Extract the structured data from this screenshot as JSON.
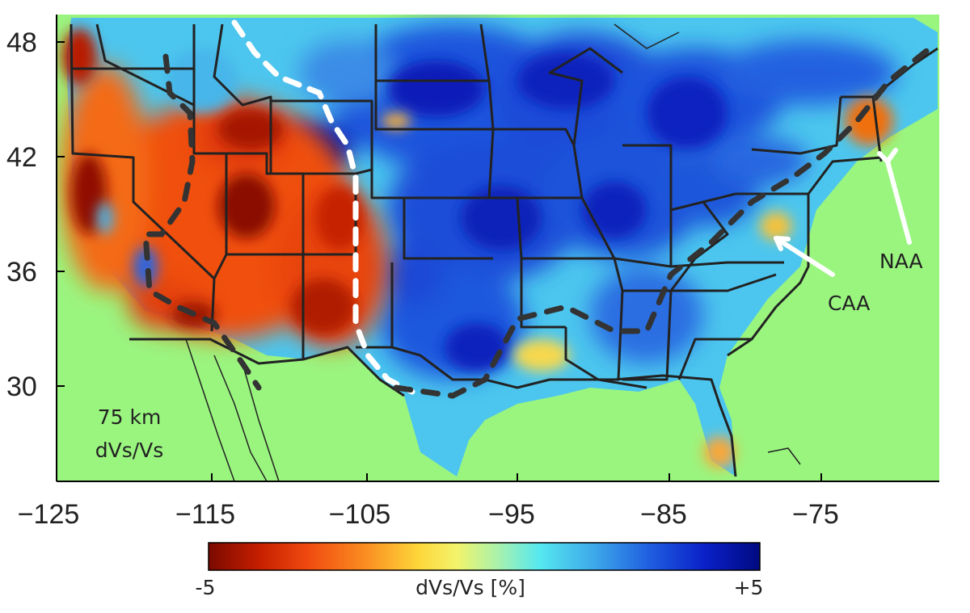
{
  "map": {
    "y_ticks": [
      "48",
      "42",
      "36",
      "30"
    ],
    "x_ticks": [
      "−125",
      "−115",
      "−105",
      "−95",
      "−85",
      "−75"
    ],
    "depth_label": "75 km",
    "quantity_label": "dVs/Vs",
    "annotations": {
      "naa": "NAA",
      "caa": "CAA"
    }
  },
  "colorbar": {
    "min_label": "-5",
    "max_label": "+5",
    "title": "dVs/Vs [%]",
    "colors": [
      "#7a0a00",
      "#c41e00",
      "#f04a10",
      "#fa8a20",
      "#fdd63a",
      "#f3f36a",
      "#aef2a8",
      "#56e8f0",
      "#3da8ea",
      "#1f5ee0",
      "#0a20c8",
      "#000a80"
    ]
  },
  "colors": {
    "ocean": "#9af57f",
    "borders": "#222222"
  }
}
